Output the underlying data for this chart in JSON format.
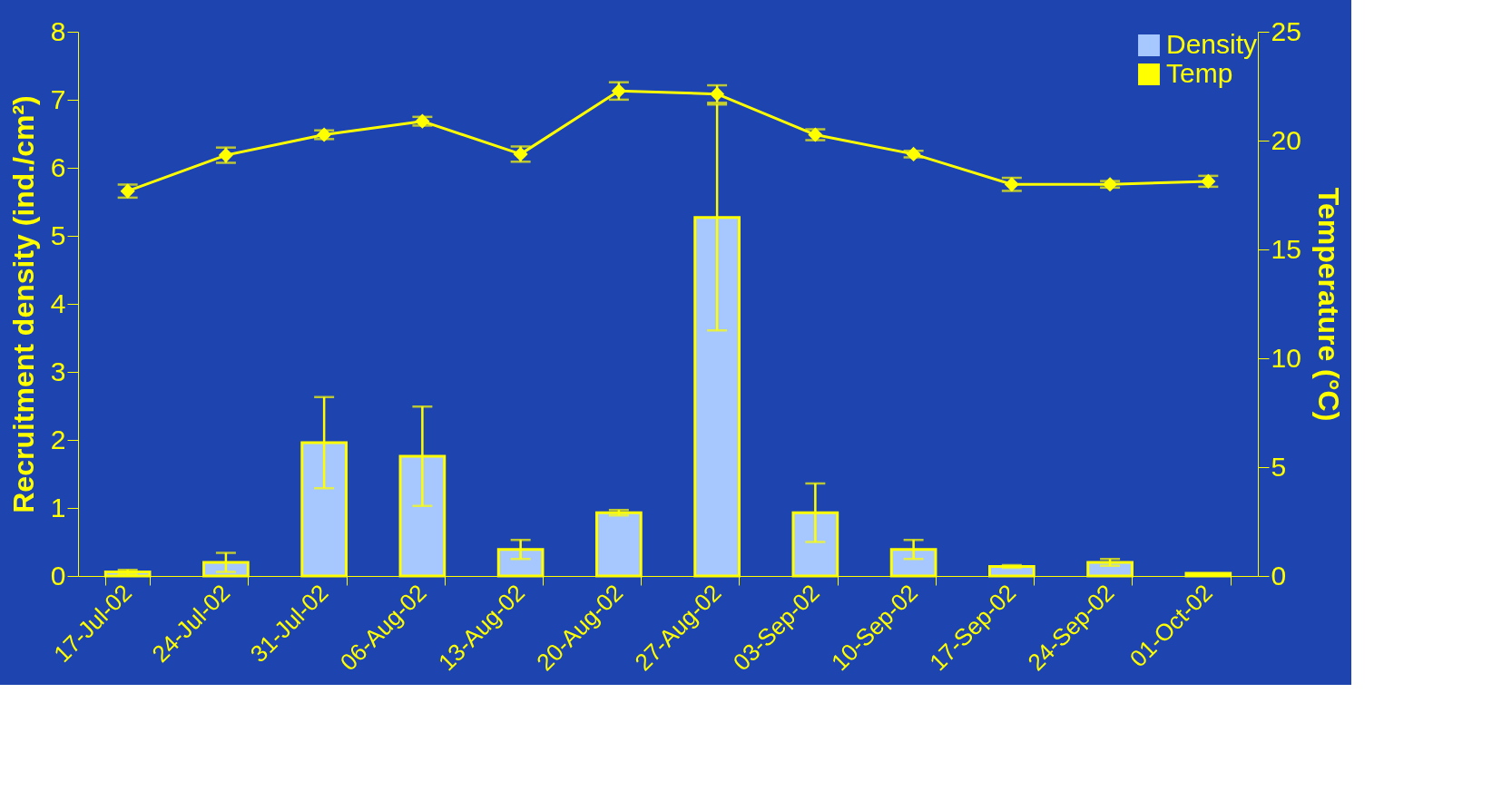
{
  "chart_data": {
    "type": "bar",
    "categories": [
      "17-Jul-02",
      "24-Jul-02",
      "31-Jul-02",
      "06-Aug-02",
      "13-Aug-02",
      "20-Aug-02",
      "27-Aug-02",
      "03-Sep-02",
      "10-Sep-02",
      "17-Sep-02",
      "24-Sep-02",
      "01-Oct-02"
    ],
    "ylabel": "Recruitment density (ind./cm²)",
    "y2label": "Temperature (°C)",
    "ylim": [
      0,
      8
    ],
    "yticks": [
      0,
      1,
      2,
      3,
      4,
      5,
      6,
      7,
      8
    ],
    "y2lim": [
      0,
      25
    ],
    "y2ticks": [
      0,
      5,
      10,
      15,
      20,
      25
    ],
    "legend": "top right",
    "grid": false,
    "series": [
      {
        "name": "Density",
        "color": "#a6c8ff",
        "values": [
          0.06,
          0.2,
          1.96,
          1.76,
          0.39,
          0.93,
          5.27,
          0.93,
          0.39,
          0.14,
          0.2,
          0.04
        ],
        "errors": [
          0.03,
          0.14,
          0.67,
          0.73,
          0.14,
          0.04,
          1.66,
          0.43,
          0.14,
          0.02,
          0.05,
          null
        ]
      },
      {
        "name": "Temp",
        "type": "line",
        "axis": "y2",
        "color": "#ffff00",
        "marker": "diamond",
        "values": [
          17.68,
          19.33,
          20.27,
          20.89,
          19.38,
          22.28,
          22.14,
          20.27,
          19.38,
          17.99,
          17.99,
          18.13
        ],
        "errors": [
          0.3,
          0.35,
          0.2,
          0.2,
          0.35,
          0.4,
          0.4,
          0.25,
          0.15,
          0.3,
          0.15,
          0.25
        ]
      }
    ]
  }
}
